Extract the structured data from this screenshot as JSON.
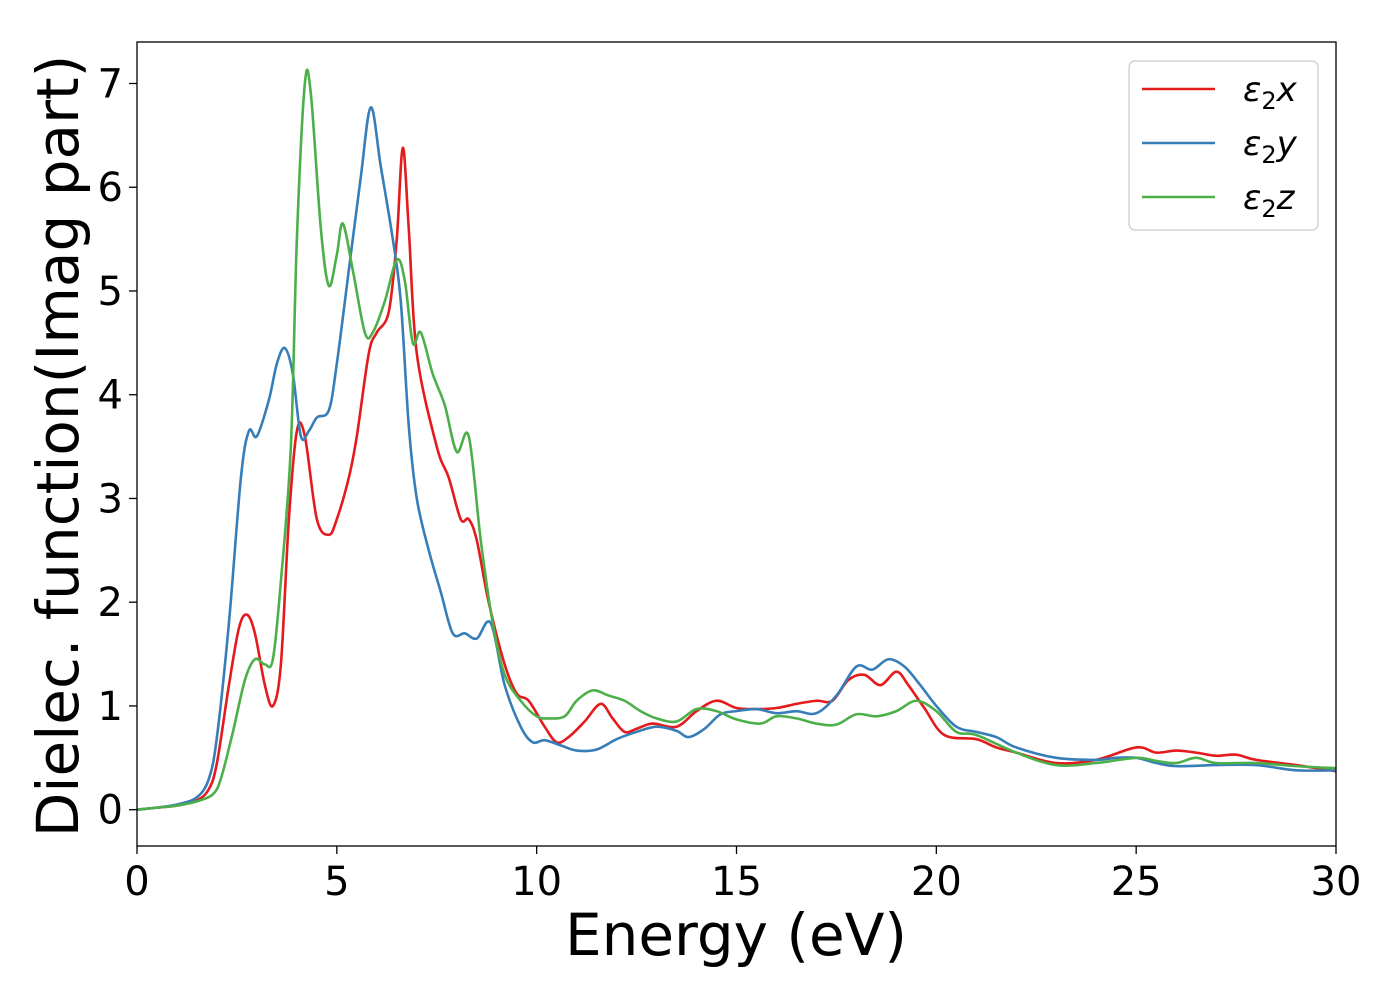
{
  "chart_data": {
    "type": "line",
    "xlabel": "Energy (eV)",
    "ylabel": "Dielec. function(Imag part)",
    "xlim": [
      0,
      30
    ],
    "ylim": [
      -0.35,
      7.4
    ],
    "xticks": [
      "0",
      "5",
      "10",
      "15",
      "20",
      "25",
      "30"
    ],
    "yticks": [
      "0",
      "1",
      "2",
      "3",
      "4",
      "5",
      "6",
      "7"
    ],
    "legend_position": "top-right",
    "grid": false,
    "series": [
      {
        "name": "ε2x",
        "legend": {
          "symbol": "ε",
          "sub": "2",
          "suffix": "x"
        },
        "color": "#e41a1c",
        "points": [
          [
            0,
            0
          ],
          [
            0.5,
            0.02
          ],
          [
            1.0,
            0.04
          ],
          [
            1.5,
            0.09
          ],
          [
            1.8,
            0.2
          ],
          [
            2.0,
            0.45
          ],
          [
            2.3,
            1.2
          ],
          [
            2.55,
            1.75
          ],
          [
            2.75,
            1.88
          ],
          [
            2.95,
            1.7
          ],
          [
            3.2,
            1.2
          ],
          [
            3.4,
            1.0
          ],
          [
            3.6,
            1.4
          ],
          [
            3.8,
            2.8
          ],
          [
            4.0,
            3.65
          ],
          [
            4.2,
            3.6
          ],
          [
            4.5,
            2.8
          ],
          [
            4.8,
            2.65
          ],
          [
            5.0,
            2.8
          ],
          [
            5.3,
            3.2
          ],
          [
            5.5,
            3.6
          ],
          [
            5.8,
            4.4
          ],
          [
            6.0,
            4.6
          ],
          [
            6.3,
            4.8
          ],
          [
            6.5,
            5.5
          ],
          [
            6.65,
            6.38
          ],
          [
            6.8,
            5.6
          ],
          [
            7.0,
            4.4
          ],
          [
            7.5,
            3.5
          ],
          [
            7.8,
            3.2
          ],
          [
            8.1,
            2.8
          ],
          [
            8.3,
            2.8
          ],
          [
            8.5,
            2.6
          ],
          [
            8.8,
            2.0
          ],
          [
            9.2,
            1.4
          ],
          [
            9.5,
            1.12
          ],
          [
            9.8,
            1.05
          ],
          [
            10.2,
            0.8
          ],
          [
            10.5,
            0.65
          ],
          [
            10.8,
            0.7
          ],
          [
            11.2,
            0.85
          ],
          [
            11.6,
            1.02
          ],
          [
            11.9,
            0.88
          ],
          [
            12.2,
            0.75
          ],
          [
            12.5,
            0.78
          ],
          [
            12.9,
            0.83
          ],
          [
            13.5,
            0.8
          ],
          [
            14.0,
            0.95
          ],
          [
            14.5,
            1.05
          ],
          [
            15.0,
            0.98
          ],
          [
            15.5,
            0.97
          ],
          [
            16.0,
            0.98
          ],
          [
            16.5,
            1.02
          ],
          [
            17.0,
            1.05
          ],
          [
            17.4,
            1.05
          ],
          [
            17.8,
            1.25
          ],
          [
            18.2,
            1.3
          ],
          [
            18.6,
            1.2
          ],
          [
            19.0,
            1.33
          ],
          [
            19.3,
            1.2
          ],
          [
            19.7,
            0.98
          ],
          [
            20.2,
            0.72
          ],
          [
            21.0,
            0.68
          ],
          [
            21.5,
            0.6
          ],
          [
            22.0,
            0.55
          ],
          [
            23.0,
            0.45
          ],
          [
            24.0,
            0.48
          ],
          [
            25.0,
            0.6
          ],
          [
            25.5,
            0.55
          ],
          [
            26.0,
            0.57
          ],
          [
            26.5,
            0.55
          ],
          [
            27.0,
            0.52
          ],
          [
            27.5,
            0.53
          ],
          [
            28.0,
            0.48
          ],
          [
            29.0,
            0.43
          ],
          [
            30.0,
            0.37
          ]
        ]
      },
      {
        "name": "ε2y",
        "legend": {
          "symbol": "ε",
          "sub": "2",
          "suffix": "y"
        },
        "color": "#377eb8",
        "points": [
          [
            0,
            0
          ],
          [
            0.5,
            0.02
          ],
          [
            1.0,
            0.05
          ],
          [
            1.5,
            0.12
          ],
          [
            1.8,
            0.3
          ],
          [
            2.0,
            0.7
          ],
          [
            2.3,
            1.8
          ],
          [
            2.6,
            3.2
          ],
          [
            2.8,
            3.65
          ],
          [
            3.0,
            3.6
          ],
          [
            3.3,
            3.95
          ],
          [
            3.5,
            4.3
          ],
          [
            3.7,
            4.45
          ],
          [
            3.9,
            4.2
          ],
          [
            4.1,
            3.6
          ],
          [
            4.3,
            3.65
          ],
          [
            4.5,
            3.78
          ],
          [
            4.8,
            3.85
          ],
          [
            5.0,
            4.3
          ],
          [
            5.3,
            5.2
          ],
          [
            5.6,
            6.1
          ],
          [
            5.85,
            6.77
          ],
          [
            6.1,
            6.2
          ],
          [
            6.4,
            5.5
          ],
          [
            6.6,
            4.9
          ],
          [
            6.8,
            3.7
          ],
          [
            7.0,
            3.0
          ],
          [
            7.3,
            2.5
          ],
          [
            7.6,
            2.1
          ],
          [
            7.9,
            1.7
          ],
          [
            8.2,
            1.7
          ],
          [
            8.5,
            1.65
          ],
          [
            8.85,
            1.8
          ],
          [
            9.2,
            1.2
          ],
          [
            9.6,
            0.8
          ],
          [
            9.9,
            0.65
          ],
          [
            10.2,
            0.67
          ],
          [
            10.6,
            0.62
          ],
          [
            11.0,
            0.57
          ],
          [
            11.5,
            0.58
          ],
          [
            12.0,
            0.68
          ],
          [
            12.5,
            0.75
          ],
          [
            13.0,
            0.8
          ],
          [
            13.5,
            0.76
          ],
          [
            13.8,
            0.7
          ],
          [
            14.2,
            0.78
          ],
          [
            14.6,
            0.92
          ],
          [
            15.0,
            0.95
          ],
          [
            15.5,
            0.97
          ],
          [
            16.0,
            0.93
          ],
          [
            16.5,
            0.95
          ],
          [
            17.0,
            0.93
          ],
          [
            17.5,
            1.1
          ],
          [
            18.0,
            1.38
          ],
          [
            18.4,
            1.35
          ],
          [
            18.8,
            1.45
          ],
          [
            19.2,
            1.38
          ],
          [
            19.6,
            1.2
          ],
          [
            20.0,
            1.0
          ],
          [
            20.5,
            0.8
          ],
          [
            21.0,
            0.75
          ],
          [
            21.5,
            0.7
          ],
          [
            22.0,
            0.6
          ],
          [
            23.0,
            0.5
          ],
          [
            24.0,
            0.48
          ],
          [
            24.5,
            0.5
          ],
          [
            25.0,
            0.5
          ],
          [
            25.5,
            0.45
          ],
          [
            26.0,
            0.42
          ],
          [
            27.0,
            0.43
          ],
          [
            28.0,
            0.43
          ],
          [
            29.0,
            0.38
          ],
          [
            30.0,
            0.38
          ]
        ]
      },
      {
        "name": "ε2z",
        "legend": {
          "symbol": "ε",
          "sub": "2",
          "suffix": "z"
        },
        "color": "#4daf4a",
        "points": [
          [
            0,
            0
          ],
          [
            0.5,
            0.02
          ],
          [
            1.0,
            0.04
          ],
          [
            1.5,
            0.08
          ],
          [
            1.9,
            0.15
          ],
          [
            2.1,
            0.3
          ],
          [
            2.4,
            0.75
          ],
          [
            2.7,
            1.25
          ],
          [
            2.95,
            1.45
          ],
          [
            3.2,
            1.4
          ],
          [
            3.4,
            1.45
          ],
          [
            3.6,
            2.2
          ],
          [
            3.85,
            3.5
          ],
          [
            4.0,
            5.5
          ],
          [
            4.2,
            7.0
          ],
          [
            4.35,
            6.9
          ],
          [
            4.6,
            5.6
          ],
          [
            4.8,
            5.05
          ],
          [
            5.0,
            5.35
          ],
          [
            5.15,
            5.65
          ],
          [
            5.4,
            5.2
          ],
          [
            5.7,
            4.6
          ],
          [
            5.9,
            4.6
          ],
          [
            6.2,
            4.9
          ],
          [
            6.5,
            5.3
          ],
          [
            6.7,
            5.1
          ],
          [
            6.9,
            4.5
          ],
          [
            7.1,
            4.6
          ],
          [
            7.4,
            4.2
          ],
          [
            7.7,
            3.9
          ],
          [
            8.0,
            3.45
          ],
          [
            8.3,
            3.6
          ],
          [
            8.6,
            2.6
          ],
          [
            8.9,
            1.8
          ],
          [
            9.2,
            1.3
          ],
          [
            9.6,
            1.05
          ],
          [
            10.0,
            0.9
          ],
          [
            10.3,
            0.88
          ],
          [
            10.7,
            0.9
          ],
          [
            11.0,
            1.05
          ],
          [
            11.4,
            1.15
          ],
          [
            11.8,
            1.1
          ],
          [
            12.2,
            1.05
          ],
          [
            12.6,
            0.95
          ],
          [
            13.0,
            0.88
          ],
          [
            13.5,
            0.85
          ],
          [
            14.0,
            0.97
          ],
          [
            14.5,
            0.95
          ],
          [
            15.0,
            0.87
          ],
          [
            15.6,
            0.83
          ],
          [
            16.0,
            0.9
          ],
          [
            16.5,
            0.88
          ],
          [
            17.0,
            0.83
          ],
          [
            17.5,
            0.82
          ],
          [
            18.0,
            0.92
          ],
          [
            18.5,
            0.9
          ],
          [
            19.0,
            0.95
          ],
          [
            19.5,
            1.05
          ],
          [
            20.0,
            0.95
          ],
          [
            20.5,
            0.75
          ],
          [
            21.0,
            0.72
          ],
          [
            22.0,
            0.55
          ],
          [
            23.0,
            0.43
          ],
          [
            24.0,
            0.45
          ],
          [
            25.0,
            0.5
          ],
          [
            25.5,
            0.47
          ],
          [
            26.0,
            0.45
          ],
          [
            26.5,
            0.5
          ],
          [
            27.0,
            0.45
          ],
          [
            28.0,
            0.45
          ],
          [
            29.0,
            0.42
          ],
          [
            30.0,
            0.4
          ]
        ]
      }
    ]
  }
}
